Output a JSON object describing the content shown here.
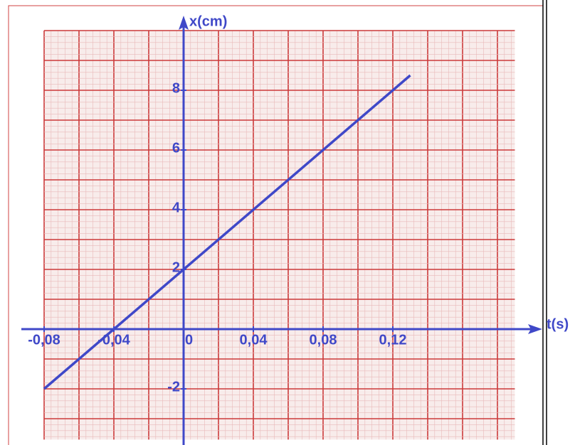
{
  "chart_data": {
    "type": "line",
    "x_label": "t(s)",
    "y_label": "x(cm)",
    "x": [
      -0.08,
      0.13
    ],
    "series": [
      {
        "color": "#3f48c8",
        "values": [
          -2,
          8.5
        ]
      }
    ],
    "xlim": [
      -0.08,
      0.19
    ],
    "ylim": [
      -3.7,
      10
    ],
    "xticks": [
      {
        "value": -0.08,
        "label": "-0,08"
      },
      {
        "value": -0.04,
        "label": "-0,04"
      },
      0,
      {
        "value": 0.04,
        "label": "0,04"
      },
      {
        "value": 0.08,
        "label": "0,08"
      },
      {
        "value": 0.12,
        "label": "0,12"
      }
    ],
    "yticks": [
      -2,
      2,
      4,
      6,
      8
    ],
    "grid": true
  }
}
